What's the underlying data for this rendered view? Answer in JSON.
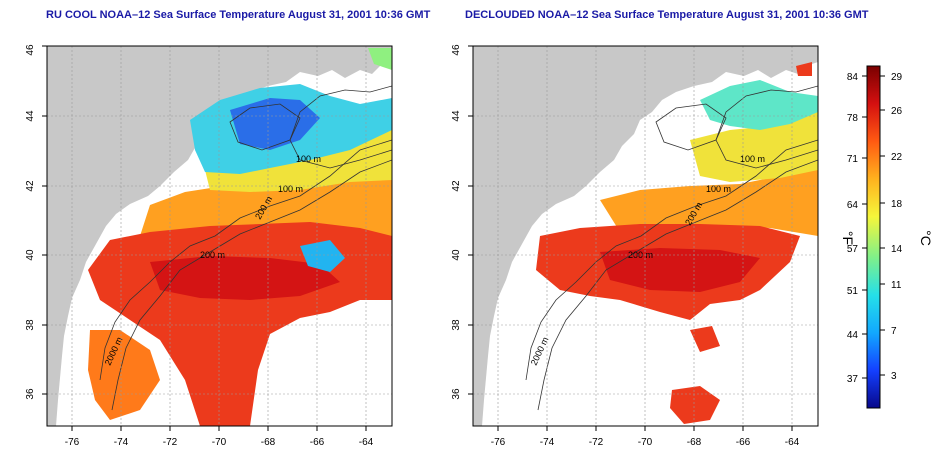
{
  "panels": [
    {
      "title": "RU COOL NOAA–12 Sea Surface Temperature August 31, 2001 10:36 GMT",
      "contour_labels": [
        "100 m",
        "100 m",
        "200 m",
        "200 m",
        "2000 m"
      ]
    },
    {
      "title": "DECLOUDED NOAA–12 Sea Surface Temperature August 31, 2001 10:36 GMT",
      "contour_labels": [
        "100 m",
        "100 m",
        "200 m",
        "200 m",
        "2000 m"
      ]
    }
  ],
  "axes": {
    "x_ticks": [
      "-76",
      "-74",
      "-72",
      "-70",
      "-68",
      "-66",
      "-64"
    ],
    "y_ticks": [
      "36",
      "38",
      "40",
      "42",
      "44",
      "46"
    ]
  },
  "colorbar": {
    "fahrenheit_ticks": [
      "84",
      "78",
      "71",
      "64",
      "57",
      "51",
      "44",
      "37"
    ],
    "celsius_ticks": [
      "29",
      "26",
      "22",
      "18",
      "14",
      "11",
      "7",
      "3"
    ],
    "fahrenheit_unit": "°F",
    "celsius_unit": "°C",
    "colors": [
      "#08088a",
      "#1440ff",
      "#12a8ff",
      "#25e0e8",
      "#7ff08a",
      "#f6f63a",
      "#ffb21e",
      "#ff5a12",
      "#d41010",
      "#7a0000"
    ]
  },
  "colors": {
    "land": "#c8c8c8",
    "cloud": "#ffffff",
    "title": "#1a1aa6"
  }
}
